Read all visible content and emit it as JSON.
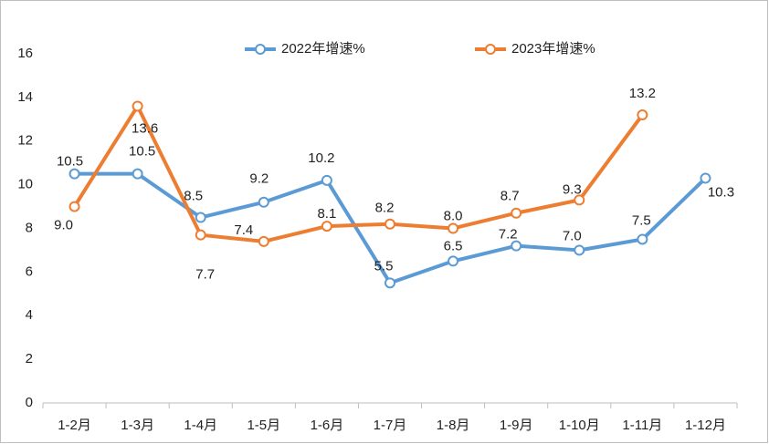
{
  "chart_data": {
    "type": "line",
    "categories": [
      "1-2月",
      "1-3月",
      "1-4月",
      "1-5月",
      "1-6月",
      "1-7月",
      "1-8月",
      "1-9月",
      "1-10月",
      "1-11月",
      "1-12月"
    ],
    "series": [
      {
        "name": "2022年增速%",
        "color": "#5b9bd5",
        "values": [
          10.5,
          10.5,
          8.5,
          9.2,
          10.2,
          5.5,
          6.5,
          7.2,
          7.0,
          7.5,
          10.3
        ],
        "value_labels": [
          "10.5",
          "10.5",
          "8.5",
          "9.2",
          "10.2",
          "5.5",
          "6.5",
          "7.2",
          "7.0",
          "7.5",
          "10.3"
        ]
      },
      {
        "name": "2023年增速%",
        "color": "#ed7d31",
        "values": [
          9.0,
          13.6,
          7.7,
          7.4,
          8.1,
          8.2,
          8.0,
          8.7,
          9.3,
          13.2,
          null
        ],
        "value_labels": [
          "9.0",
          "13.6",
          "7.7",
          "7.4",
          "8.1",
          "8.2",
          "8.0",
          "8.7",
          "9.3",
          "13.2",
          null
        ]
      }
    ],
    "ylim": [
      0,
      16
    ],
    "yticks": [
      0,
      2,
      4,
      6,
      8,
      10,
      12,
      14,
      16
    ],
    "grid": false,
    "legend": "top"
  }
}
